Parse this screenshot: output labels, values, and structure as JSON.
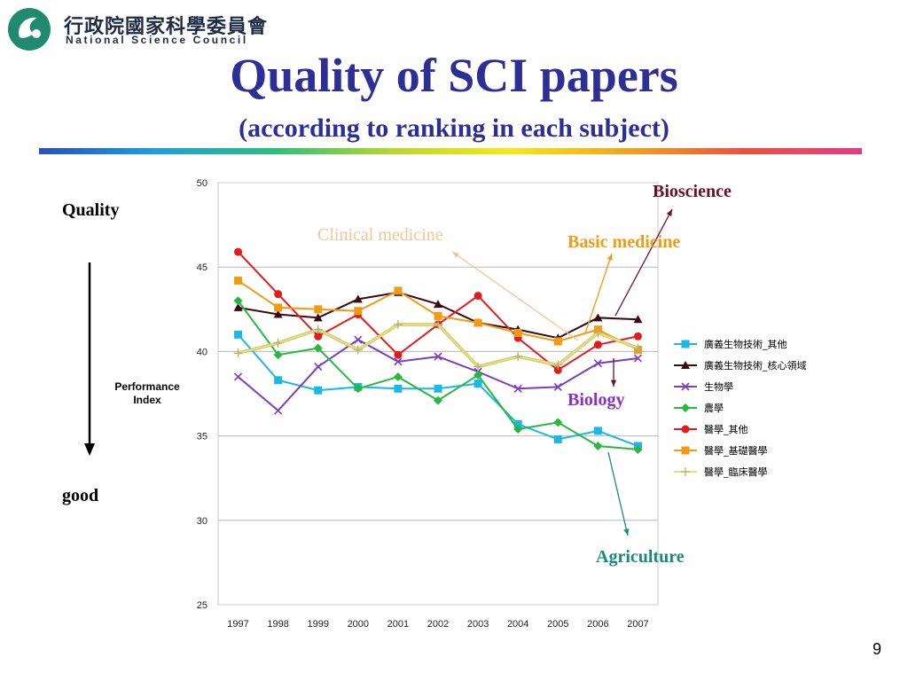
{
  "header": {
    "org_name_cn": "行政院國家科學委員會",
    "org_name_en": "National Science Council",
    "page_number": "9"
  },
  "slide": {
    "title": "Quality of SCI papers",
    "subtitle": "(according to ranking in each subject)"
  },
  "side_labels": {
    "top": "Quality",
    "bottom": "good",
    "axis_caption_line1": "Performance",
    "axis_caption_line2": "Index"
  },
  "annotations": {
    "bioscience": "Bioscience",
    "clinical": "Clinical medicine",
    "basic": "Basic medicine",
    "biology": "Biology",
    "agriculture": "Agriculture"
  },
  "colors": {
    "title": "#2d2f96",
    "bioscience": "#6b0f2a",
    "clinical": "#f6c49a",
    "basic": "#f39a14",
    "biology": "#8b2fc9",
    "agriculture": "#1a8a7a"
  },
  "chart_data": {
    "type": "line",
    "categories": [
      "1997",
      "1998",
      "1999",
      "2000",
      "2001",
      "2002",
      "2003",
      "2004",
      "2005",
      "2006",
      "2007"
    ],
    "ylim": [
      25,
      50
    ],
    "yticks": [
      25,
      30,
      35,
      40,
      45,
      50
    ],
    "grid": true,
    "legend_position": "right",
    "series": [
      {
        "name": "廣義生物技術_其他",
        "color": "#1bb7e6",
        "marker": "square",
        "values": [
          41.0,
          38.3,
          37.7,
          37.9,
          37.8,
          37.8,
          38.1,
          35.7,
          34.8,
          35.3,
          34.4
        ]
      },
      {
        "name": "廣義生物技術_核心領域",
        "color": "#3a0a12",
        "marker": "triangle",
        "values": [
          42.6,
          42.2,
          42.0,
          43.1,
          43.5,
          42.8,
          41.7,
          41.3,
          40.8,
          42.0,
          41.9
        ]
      },
      {
        "name": "生物學",
        "color": "#7a3cc4",
        "marker": "x",
        "values": [
          38.5,
          36.5,
          39.1,
          40.7,
          39.4,
          39.7,
          38.8,
          37.8,
          37.9,
          39.3,
          39.6
        ]
      },
      {
        "name": "農學",
        "color": "#27b840",
        "marker": "diamond",
        "values": [
          43.0,
          39.8,
          40.2,
          37.8,
          38.5,
          37.1,
          38.6,
          35.4,
          35.8,
          34.4,
          34.2
        ]
      },
      {
        "name": "醫學_其他",
        "color": "#e21c1c",
        "marker": "circle",
        "values": [
          45.9,
          43.4,
          40.9,
          42.2,
          39.8,
          41.6,
          43.3,
          40.8,
          38.9,
          40.4,
          40.9
        ]
      },
      {
        "name": "醫學_基礎醫學",
        "color": "#f39a14",
        "marker": "square",
        "values": [
          44.2,
          42.6,
          42.5,
          42.4,
          43.6,
          42.1,
          41.7,
          41.1,
          40.6,
          41.3,
          40.1
        ]
      },
      {
        "name": "醫學_臨床醫學",
        "color": "#e8e070",
        "marker": "plus",
        "values": [
          39.9,
          40.5,
          41.3,
          40.1,
          41.6,
          41.6,
          39.1,
          39.7,
          39.2,
          41.1,
          40.2
        ]
      }
    ]
  }
}
